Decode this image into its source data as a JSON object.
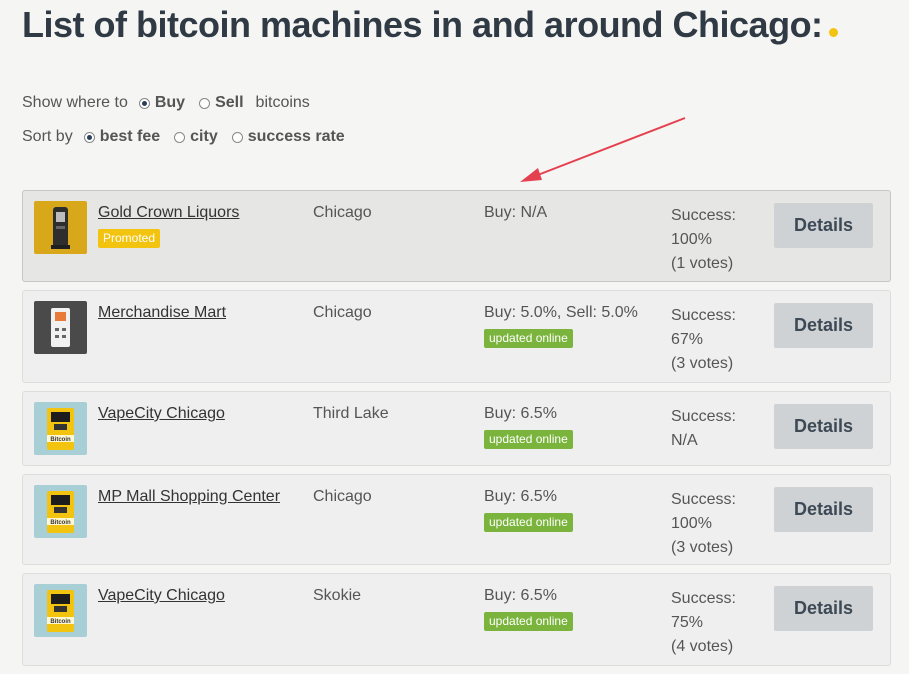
{
  "heading": "List of bitcoin machines in and around Chicago:",
  "show": {
    "label": "Show where to",
    "options": [
      "Buy",
      "Sell"
    ],
    "selected": "Buy",
    "suffix": "bitcoins"
  },
  "sort": {
    "label": "Sort by",
    "options": [
      "best fee",
      "city",
      "success rate"
    ],
    "selected": "best fee"
  },
  "colors": {
    "accent": "#f2c30f",
    "online": "#7ab43c",
    "title": "#2f3a44",
    "arrow": "#e5404f"
  },
  "machines": [
    {
      "name": "Gold Crown Liquors",
      "badge": "Promoted",
      "city": "Chicago",
      "fee": "Buy: N/A",
      "success_label": "Success:",
      "success": "100%",
      "votes": "(1 votes)",
      "details": "Details",
      "thumb": "atm-icon-dark-on-gold"
    },
    {
      "name": "Merchandise Mart",
      "badge": "updated online",
      "city": "Chicago",
      "fee": "Buy: 5.0%, Sell: 5.0%",
      "success_label": "Success:",
      "success": "67%",
      "votes": "(3 votes)",
      "details": "Details",
      "thumb": "atm-icon-white-on-dark"
    },
    {
      "name": "VapeCity Chicago",
      "badge": "updated online",
      "city": "Third Lake",
      "fee": "Buy: 6.5%",
      "success_label": "Success:",
      "success": "N/A",
      "votes": "",
      "details": "Details",
      "thumb": "atm-icon-yellow-bitcoin"
    },
    {
      "name": "MP Mall Shopping Center",
      "badge": "updated online",
      "city": "Chicago",
      "fee": "Buy: 6.5%",
      "success_label": "Success:",
      "success": "100%",
      "votes": "(3 votes)",
      "details": "Details",
      "thumb": "atm-icon-yellow-bitcoin"
    },
    {
      "name": "VapeCity Chicago",
      "badge": "updated online",
      "city": "Skokie",
      "fee": "Buy: 6.5%",
      "success_label": "Success:",
      "success": "75%",
      "votes": "(4 votes)",
      "details": "Details",
      "thumb": "atm-icon-yellow-bitcoin"
    }
  ]
}
